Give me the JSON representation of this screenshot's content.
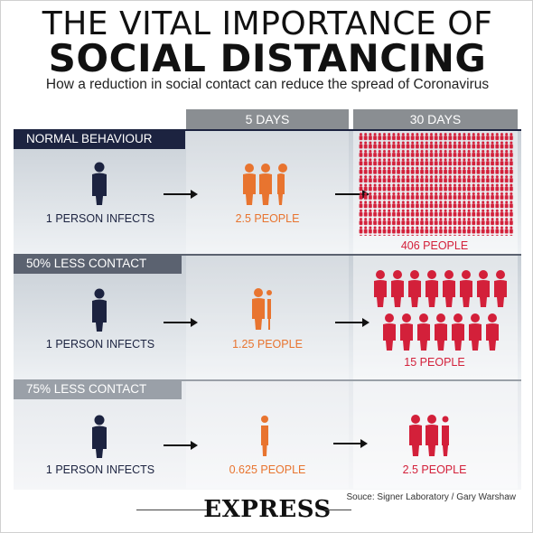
{
  "title": {
    "line1": "THE VITAL IMPORTANCE OF",
    "line2": "SOCIAL DISTANCING",
    "subtitle": "How a reduction in social contact can reduce the spread of Coronavirus"
  },
  "columns": [
    "5 DAYS",
    "30 DAYS"
  ],
  "rows": [
    {
      "label": "NORMAL BEHAVIOUR",
      "start": "1 PERSON INFECTS",
      "day5": "2.5 PEOPLE",
      "day30": "406 PEOPLE"
    },
    {
      "label": "50% LESS CONTACT",
      "start": "1 PERSON INFECTS",
      "day5": "1.25 PEOPLE",
      "day30": "15 PEOPLE"
    },
    {
      "label": "75% LESS CONTACT",
      "start": "1 PERSON INFECTS",
      "day5": "0.625 PEOPLE",
      "day30": "2.5 PEOPLE"
    }
  ],
  "footer": {
    "source": "Souce: Signer Laboratory / Gary Warshaw",
    "brand": "EXPRESS"
  },
  "colors": {
    "navy": "#1c2340",
    "orange": "#e8742f",
    "red": "#d3203a",
    "grey": "#8a8e92",
    "row1_label": "#1c2340",
    "row23_label": "#9aa0a8"
  },
  "icons": [
    "person-icon",
    "arrow-right-icon"
  ]
}
